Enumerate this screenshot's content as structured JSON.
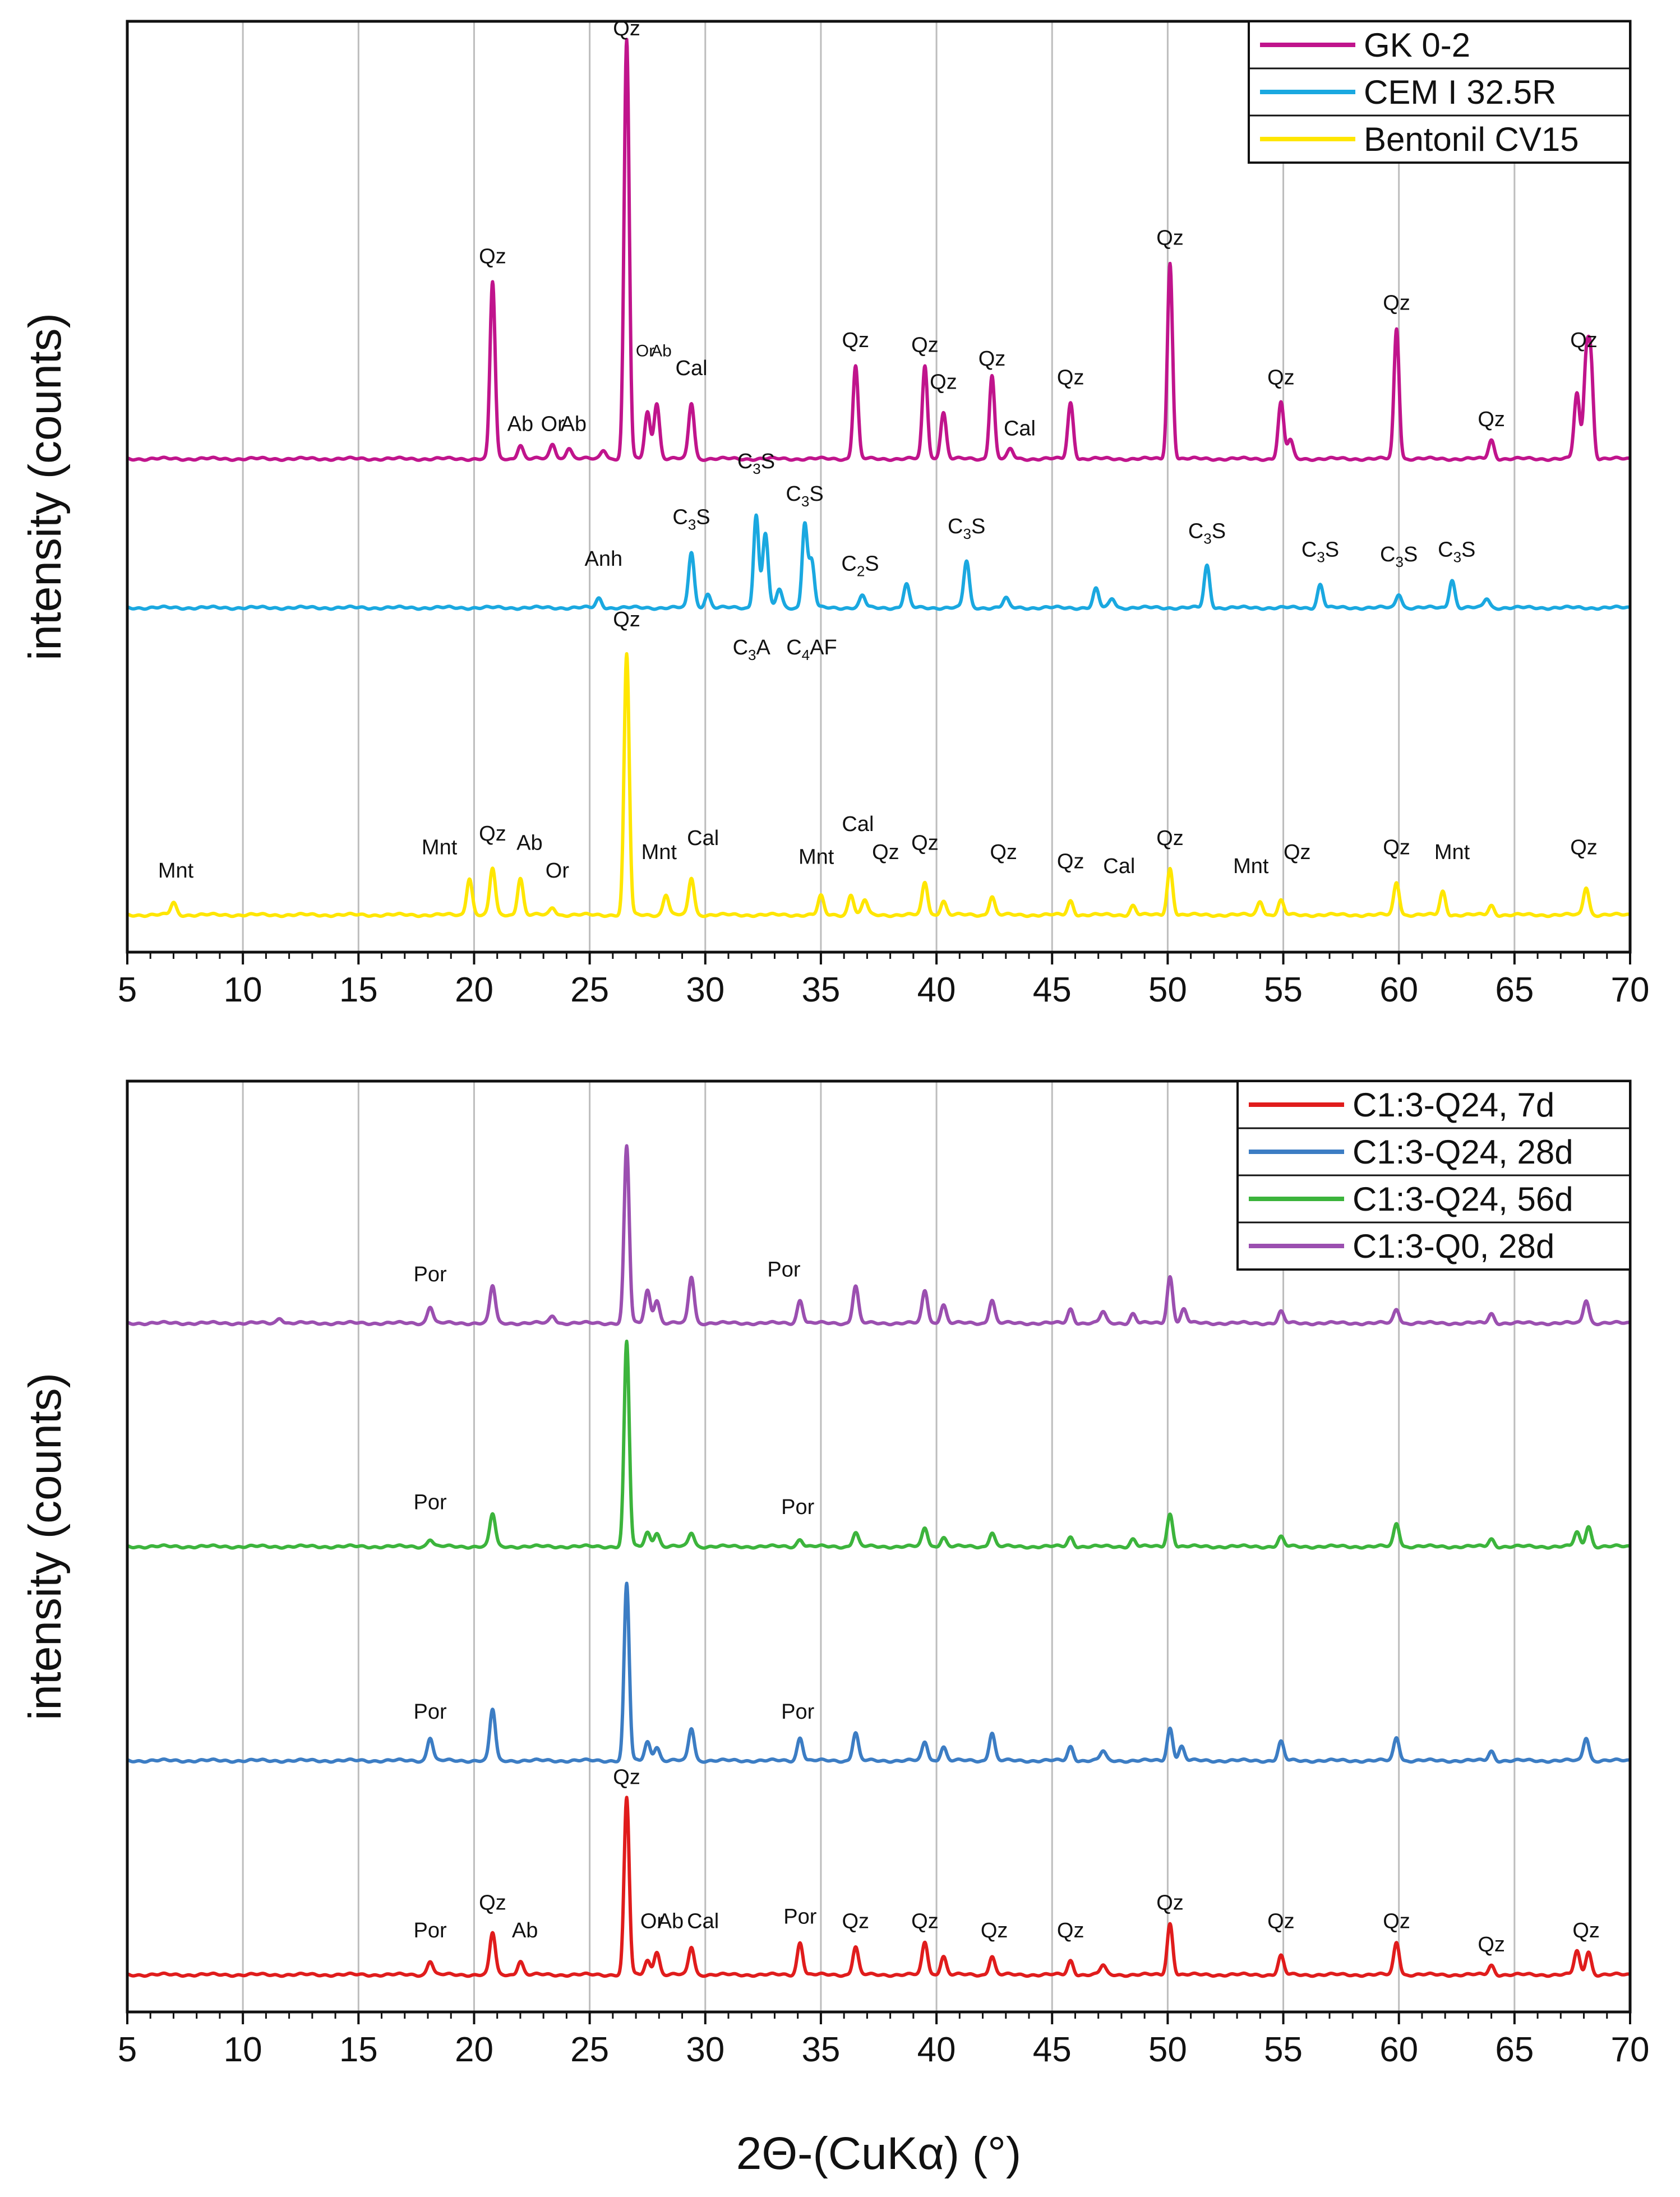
{
  "chart_data": [
    {
      "type": "line",
      "panel": "top",
      "title": "",
      "xlabel": "2Θ-(CuKα) (°)",
      "ylabel": "intensity (counts)",
      "xlim": [
        5,
        70
      ],
      "ylim": [
        0,
        100
      ],
      "xticks": [
        "5",
        "10",
        "15",
        "20",
        "25",
        "30",
        "35",
        "40",
        "45",
        "50",
        "55",
        "60",
        "65",
        "70"
      ],
      "grid": "vertical",
      "legend_position": "top-right",
      "series": [
        {
          "name": "GK 0-2",
          "color": "#C0148C",
          "baseline": 53,
          "peaks": [
            [
              20.8,
              19
            ],
            [
              22.0,
              1.5
            ],
            [
              23.4,
              1.6
            ],
            [
              24.1,
              1.2
            ],
            [
              25.6,
              1
            ],
            [
              26.6,
              45
            ],
            [
              27.5,
              5
            ],
            [
              27.9,
              6
            ],
            [
              29.4,
              6
            ],
            [
              36.5,
              10
            ],
            [
              39.5,
              10
            ],
            [
              40.3,
              5
            ],
            [
              42.4,
              9
            ],
            [
              43.2,
              1
            ],
            [
              45.8,
              6
            ],
            [
              50.1,
              21
            ],
            [
              54.9,
              6
            ],
            [
              55.3,
              2
            ],
            [
              59.9,
              14
            ],
            [
              64.0,
              2
            ],
            [
              67.7,
              7
            ],
            [
              68.1,
              10
            ],
            [
              68.3,
              10
            ]
          ]
        },
        {
          "name": "CEM I 32.5R",
          "color": "#1AA8E0",
          "baseline": 37,
          "peaks": [
            [
              25.4,
              1
            ],
            [
              29.4,
              6
            ],
            [
              30.1,
              1.5
            ],
            [
              32.2,
              10
            ],
            [
              32.6,
              8
            ],
            [
              33.2,
              2
            ],
            [
              34.3,
              9
            ],
            [
              34.6,
              5
            ],
            [
              36.8,
              1.3
            ],
            [
              38.7,
              2.5
            ],
            [
              41.3,
              5
            ],
            [
              43.0,
              1
            ],
            [
              46.9,
              2
            ],
            [
              47.6,
              1
            ],
            [
              51.7,
              4.5
            ],
            [
              56.6,
              2.5
            ],
            [
              60.0,
              1.5
            ],
            [
              62.3,
              3
            ],
            [
              63.8,
              1
            ]
          ]
        },
        {
          "name": "Bentonil CV15",
          "color": "#FFE600",
          "baseline": 4,
          "peaks": [
            [
              7.0,
              1.3
            ],
            [
              19.8,
              4
            ],
            [
              20.8,
              5
            ],
            [
              22.0,
              4
            ],
            [
              23.4,
              0.8
            ],
            [
              26.6,
              28
            ],
            [
              28.3,
              2.2
            ],
            [
              29.4,
              4
            ],
            [
              35.0,
              2
            ],
            [
              36.3,
              2.2
            ],
            [
              36.9,
              1.6
            ],
            [
              39.5,
              3.5
            ],
            [
              40.3,
              1.5
            ],
            [
              42.4,
              2
            ],
            [
              45.8,
              1.5
            ],
            [
              48.5,
              1
            ],
            [
              50.1,
              5
            ],
            [
              54.0,
              1.5
            ],
            [
              54.9,
              1.5
            ],
            [
              59.9,
              3.5
            ],
            [
              61.9,
              2.5
            ],
            [
              64.0,
              1
            ],
            [
              68.1,
              3
            ]
          ]
        }
      ],
      "annotations": [
        {
          "text": "Qz",
          "x": 26.6,
          "y": 98.5
        },
        {
          "text": "Qz",
          "x": 20.8,
          "y": 74
        },
        {
          "text": "Ab",
          "x": 22.0,
          "y": 56
        },
        {
          "text": "Or",
          "x": 23.4,
          "y": 56
        },
        {
          "text": "Ab",
          "x": 24.3,
          "y": 56
        },
        {
          "text": "Or",
          "x": 27.4,
          "y": 64
        },
        {
          "text": "Ab",
          "x": 28.1,
          "y": 64
        },
        {
          "text": "Cal",
          "x": 29.4,
          "y": 62
        },
        {
          "text": "Qz",
          "x": 36.5,
          "y": 65
        },
        {
          "text": "Qz",
          "x": 39.5,
          "y": 64.5
        },
        {
          "text": "Qz",
          "x": 40.3,
          "y": 60.5
        },
        {
          "text": "Qz",
          "x": 42.4,
          "y": 63
        },
        {
          "text": "Cal",
          "x": 43.6,
          "y": 55.5
        },
        {
          "text": "Qz",
          "x": 45.8,
          "y": 61
        },
        {
          "text": "Qz",
          "x": 50.1,
          "y": 76
        },
        {
          "text": "Qz",
          "x": 54.9,
          "y": 61
        },
        {
          "text": "Qz",
          "x": 59.9,
          "y": 69
        },
        {
          "text": "Qz",
          "x": 64.0,
          "y": 56.5
        },
        {
          "text": "Qz",
          "x": 68.0,
          "y": 65
        },
        {
          "text": "Anh",
          "x": 25.6,
          "y": 41.5
        },
        {
          "text": "C",
          "sub": "3",
          "tail": "S",
          "x": 29.4,
          "y": 46
        },
        {
          "text": "C",
          "sub": "3",
          "tail": "S",
          "x": 32.2,
          "y": 52
        },
        {
          "text": "C",
          "sub": "3",
          "tail": "S",
          "x": 34.3,
          "y": 48.5
        },
        {
          "text": "C",
          "sub": "2",
          "tail": "S",
          "x": 36.7,
          "y": 41
        },
        {
          "text": "C",
          "sub": "3",
          "tail": "S",
          "x": 41.3,
          "y": 45
        },
        {
          "text": "C",
          "sub": "3",
          "tail": "S",
          "x": 51.7,
          "y": 44.5
        },
        {
          "text": "C",
          "sub": "3",
          "tail": "S",
          "x": 56.6,
          "y": 42.5
        },
        {
          "text": "C",
          "sub": "3",
          "tail": "S",
          "x": 60.0,
          "y": 42
        },
        {
          "text": "C",
          "sub": "3",
          "tail": "S",
          "x": 62.5,
          "y": 42.5
        },
        {
          "text": "C",
          "sub": "3",
          "tail": "A",
          "x": 32.0,
          "y": 32
        },
        {
          "text": "C",
          "sub": "4",
          "tail": "AF",
          "x": 34.6,
          "y": 32
        },
        {
          "text": "Qz",
          "x": 26.6,
          "y": 35
        },
        {
          "text": "Mnt",
          "x": 7.1,
          "y": 8
        },
        {
          "text": "Mnt",
          "x": 18.5,
          "y": 10.5
        },
        {
          "text": "Qz",
          "x": 20.8,
          "y": 12
        },
        {
          "text": "Ab",
          "x": 22.4,
          "y": 11
        },
        {
          "text": "Or",
          "x": 23.6,
          "y": 8
        },
        {
          "text": "Mnt",
          "x": 28.0,
          "y": 10
        },
        {
          "text": "Cal",
          "x": 29.9,
          "y": 11.5
        },
        {
          "text": "Mnt",
          "x": 34.8,
          "y": 9.5
        },
        {
          "text": "Cal",
          "x": 36.6,
          "y": 13
        },
        {
          "text": "Qz",
          "x": 37.8,
          "y": 10
        },
        {
          "text": "Qz",
          "x": 39.5,
          "y": 11
        },
        {
          "text": "Qz",
          "x": 42.9,
          "y": 10
        },
        {
          "text": "Qz",
          "x": 45.8,
          "y": 9
        },
        {
          "text": "Cal",
          "x": 47.9,
          "y": 8.5
        },
        {
          "text": "Qz",
          "x": 50.1,
          "y": 11.5
        },
        {
          "text": "Mnt",
          "x": 53.6,
          "y": 8.5
        },
        {
          "text": "Qz",
          "x": 55.6,
          "y": 10
        },
        {
          "text": "Qz",
          "x": 59.9,
          "y": 10.5
        },
        {
          "text": "Mnt",
          "x": 62.3,
          "y": 10
        },
        {
          "text": "Qz",
          "x": 68.0,
          "y": 10.5
        }
      ]
    },
    {
      "type": "line",
      "panel": "bottom",
      "title": "",
      "xlabel": "2Θ-(CuKα) (°)",
      "ylabel": "intensity (counts)",
      "xlim": [
        5,
        70
      ],
      "ylim": [
        0,
        100
      ],
      "xticks": [
        "5",
        "10",
        "15",
        "20",
        "25",
        "30",
        "35",
        "40",
        "45",
        "50",
        "55",
        "60",
        "65",
        "70"
      ],
      "grid": "vertical",
      "legend_position": "top-right",
      "series": [
        {
          "name": "C1:3-Q24, 7d",
          "color": "#E01C1C",
          "baseline": 4,
          "peaks": [
            [
              18.1,
              1.5
            ],
            [
              20.8,
              4.5
            ],
            [
              22.0,
              1.5
            ],
            [
              26.6,
              19
            ],
            [
              27.5,
              1.5
            ],
            [
              27.9,
              2.5
            ],
            [
              29.4,
              3
            ],
            [
              34.1,
              3.5
            ],
            [
              36.5,
              3
            ],
            [
              39.5,
              3.5
            ],
            [
              40.3,
              2
            ],
            [
              42.4,
              2
            ],
            [
              45.8,
              1.5
            ],
            [
              47.2,
              1
            ],
            [
              50.1,
              5.5
            ],
            [
              54.9,
              2
            ],
            [
              59.9,
              3.5
            ],
            [
              64.0,
              1
            ],
            [
              67.7,
              2.5
            ],
            [
              68.2,
              2.5
            ]
          ]
        },
        {
          "name": "C1:3-Q24, 28d",
          "color": "#3C7DC4",
          "baseline": 27,
          "peaks": [
            [
              18.1,
              2.5
            ],
            [
              20.8,
              5.5
            ],
            [
              26.6,
              19
            ],
            [
              27.5,
              2
            ],
            [
              27.9,
              1.5
            ],
            [
              29.4,
              3.5
            ],
            [
              34.1,
              2.5
            ],
            [
              36.5,
              3
            ],
            [
              39.5,
              2
            ],
            [
              40.3,
              1.5
            ],
            [
              42.4,
              3
            ],
            [
              45.8,
              1.5
            ],
            [
              47.2,
              1
            ],
            [
              50.1,
              3.5
            ],
            [
              50.6,
              1.5
            ],
            [
              54.9,
              2
            ],
            [
              59.9,
              2.5
            ],
            [
              64.0,
              1
            ],
            [
              68.1,
              2.5
            ]
          ]
        },
        {
          "name": "C1:3-Q24, 56d",
          "color": "#3CB43C",
          "baseline": 50,
          "peaks": [
            [
              18.1,
              0.8
            ],
            [
              20.8,
              3.5
            ],
            [
              26.6,
              22
            ],
            [
              27.5,
              1.5
            ],
            [
              27.9,
              1.5
            ],
            [
              29.4,
              1.5
            ],
            [
              34.1,
              0.8
            ],
            [
              36.5,
              1.5
            ],
            [
              39.5,
              2
            ],
            [
              40.3,
              1
            ],
            [
              42.4,
              1.5
            ],
            [
              45.8,
              1
            ],
            [
              48.5,
              0.8
            ],
            [
              50.1,
              3.5
            ],
            [
              54.9,
              1
            ],
            [
              59.9,
              2.5
            ],
            [
              64.0,
              0.8
            ],
            [
              67.7,
              1.5
            ],
            [
              68.2,
              2.2
            ]
          ]
        },
        {
          "name": "C1:3-Q0, 28d",
          "color": "#9B4FB0",
          "baseline": 74,
          "peaks": [
            [
              11.6,
              0.6
            ],
            [
              18.1,
              1.8
            ],
            [
              20.8,
              4
            ],
            [
              23.4,
              0.8
            ],
            [
              26.6,
              19
            ],
            [
              27.5,
              3.5
            ],
            [
              27.9,
              2.5
            ],
            [
              29.4,
              5
            ],
            [
              34.1,
              2.5
            ],
            [
              36.5,
              4
            ],
            [
              39.5,
              3.5
            ],
            [
              40.3,
              2
            ],
            [
              42.4,
              2.5
            ],
            [
              45.8,
              1.5
            ],
            [
              47.2,
              1.2
            ],
            [
              48.5,
              1
            ],
            [
              50.1,
              5
            ],
            [
              50.7,
              1.5
            ],
            [
              54.9,
              1.2
            ],
            [
              59.9,
              1.5
            ],
            [
              64.0,
              1
            ],
            [
              68.1,
              2.5
            ]
          ]
        }
      ],
      "annotations": [
        {
          "text": "Por",
          "x": 18.1,
          "y": 78.5
        },
        {
          "text": "Por",
          "x": 33.4,
          "y": 79
        },
        {
          "text": "Por",
          "x": 18.1,
          "y": 54
        },
        {
          "text": "Por",
          "x": 34.0,
          "y": 53.5
        },
        {
          "text": "Por",
          "x": 18.1,
          "y": 31.5
        },
        {
          "text": "Por",
          "x": 34.0,
          "y": 31.5
        },
        {
          "text": "Qz",
          "x": 26.6,
          "y": 24.5
        },
        {
          "text": "Por",
          "x": 18.1,
          "y": 8
        },
        {
          "text": "Qz",
          "x": 20.8,
          "y": 11
        },
        {
          "text": "Ab",
          "x": 22.2,
          "y": 8
        },
        {
          "text": "Or",
          "x": 27.7,
          "y": 9
        },
        {
          "text": "Ab",
          "x": 28.5,
          "y": 9
        },
        {
          "text": "Cal",
          "x": 29.9,
          "y": 9
        },
        {
          "text": "Por",
          "x": 34.1,
          "y": 9.5
        },
        {
          "text": "Qz",
          "x": 36.5,
          "y": 9
        },
        {
          "text": "Qz",
          "x": 39.5,
          "y": 9
        },
        {
          "text": "Qz",
          "x": 42.5,
          "y": 8
        },
        {
          "text": "Qz",
          "x": 45.8,
          "y": 8
        },
        {
          "text": "Qz",
          "x": 50.1,
          "y": 11
        },
        {
          "text": "Qz",
          "x": 54.9,
          "y": 9
        },
        {
          "text": "Qz",
          "x": 59.9,
          "y": 9
        },
        {
          "text": "Qz",
          "x": 64.0,
          "y": 6.5
        },
        {
          "text": "Qz",
          "x": 68.1,
          "y": 8
        }
      ]
    }
  ]
}
